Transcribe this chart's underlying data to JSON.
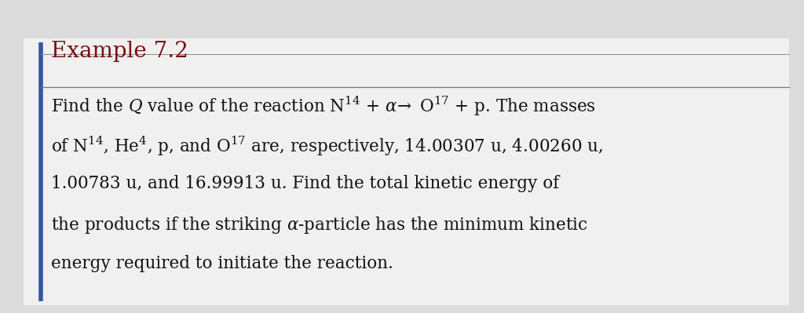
{
  "title": "Example 7.2",
  "title_color": "#7B1010",
  "background_color": "#DCDCDC",
  "box_bg_color": "#F0F0F0",
  "border_color": "#3355AA",
  "line1": "Find the $Q$ value of the reaction N$^{14}$ + $\\alpha\\!\\to$ O$^{17}$ + p. The masses",
  "line2": "of N$^{14}$, He$^4$, p, and O$^{17}$ are, respectively, 14.00307 u, 4.00260 u,",
  "line3": "1.00783 u, and 16.99913 u. Find the total kinetic energy of",
  "line4": "the products if the striking $\\alpha$-particle has the minimum kinetic",
  "line5": "energy required to initiate the reaction.",
  "text_color": "#111111",
  "font_size_title": 20,
  "font_size_body": 15.5
}
